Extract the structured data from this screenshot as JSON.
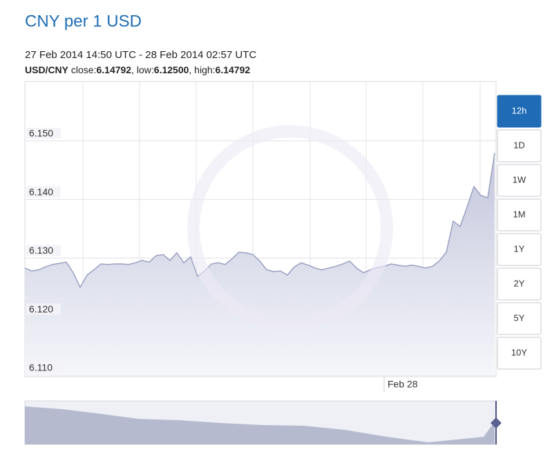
{
  "chart_data": {
    "type": "area",
    "title": "CNY per 1 USD",
    "subtitle": "27 Feb 2014 14:50 UTC - 28 Feb 2014 02:57 UTC",
    "stats": {
      "pair": "USD/CNY",
      "items": [
        {
          "label": " close:",
          "value": "6.14792"
        },
        {
          "label": ", low:",
          "value": "6.12500"
        },
        {
          "label": ", high:",
          "value": "6.14792"
        }
      ]
    },
    "categories": [
      null,
      null,
      null,
      null,
      null,
      null,
      null,
      null,
      null,
      null,
      null,
      null,
      null,
      null,
      null,
      null,
      null,
      null,
      null,
      null,
      null,
      null,
      null,
      null,
      null,
      null,
      null,
      null,
      null,
      null,
      null,
      null,
      null,
      null,
      null,
      null,
      null,
      null,
      null,
      null,
      null,
      null,
      null,
      null,
      null,
      null,
      null,
      null,
      null,
      null,
      null,
      null,
      "Feb 28",
      null,
      null,
      null,
      null,
      null,
      null,
      null,
      null,
      null,
      null,
      null,
      null,
      null,
      null,
      null,
      null
    ],
    "values": [
      6.1283,
      6.1278,
      6.128,
      6.1285,
      6.1289,
      6.1291,
      6.1293,
      6.1275,
      6.125,
      6.1271,
      6.128,
      6.129,
      6.1289,
      6.129,
      6.129,
      6.1289,
      6.1292,
      6.1296,
      6.1293,
      6.1304,
      6.1306,
      6.1296,
      6.1309,
      6.1292,
      6.1302,
      6.1269,
      6.1278,
      6.129,
      6.1292,
      6.1289,
      6.1299,
      6.131,
      6.1309,
      6.1306,
      6.1295,
      6.128,
      6.1277,
      6.1278,
      6.1271,
      6.1285,
      6.1292,
      6.1288,
      6.1283,
      6.128,
      6.1283,
      6.1286,
      6.129,
      6.1295,
      6.1283,
      6.1275,
      6.128,
      6.1284,
      6.1286,
      6.129,
      6.1288,
      6.1286,
      6.1288,
      6.1286,
      6.1283,
      6.1286,
      6.1295,
      6.131,
      6.1363,
      6.1354,
      6.1387,
      6.1422,
      6.1407,
      6.1403,
      6.14792
    ],
    "color": "#9a9fc0",
    "ylim": [
      6.11,
      6.16
    ],
    "yticks": [
      {
        "value": 6.11,
        "label": "6.110"
      },
      {
        "value": 6.12,
        "label": "6.120"
      },
      {
        "value": 6.13,
        "label": "6.130"
      },
      {
        "value": 6.14,
        "label": "6.140"
      },
      {
        "value": 6.15,
        "label": "6.150"
      }
    ],
    "grid": true,
    "range_buttons": [
      "12h",
      "1D",
      "1W",
      "1M",
      "1Y",
      "2Y",
      "5Y",
      "10Y"
    ]
  }
}
